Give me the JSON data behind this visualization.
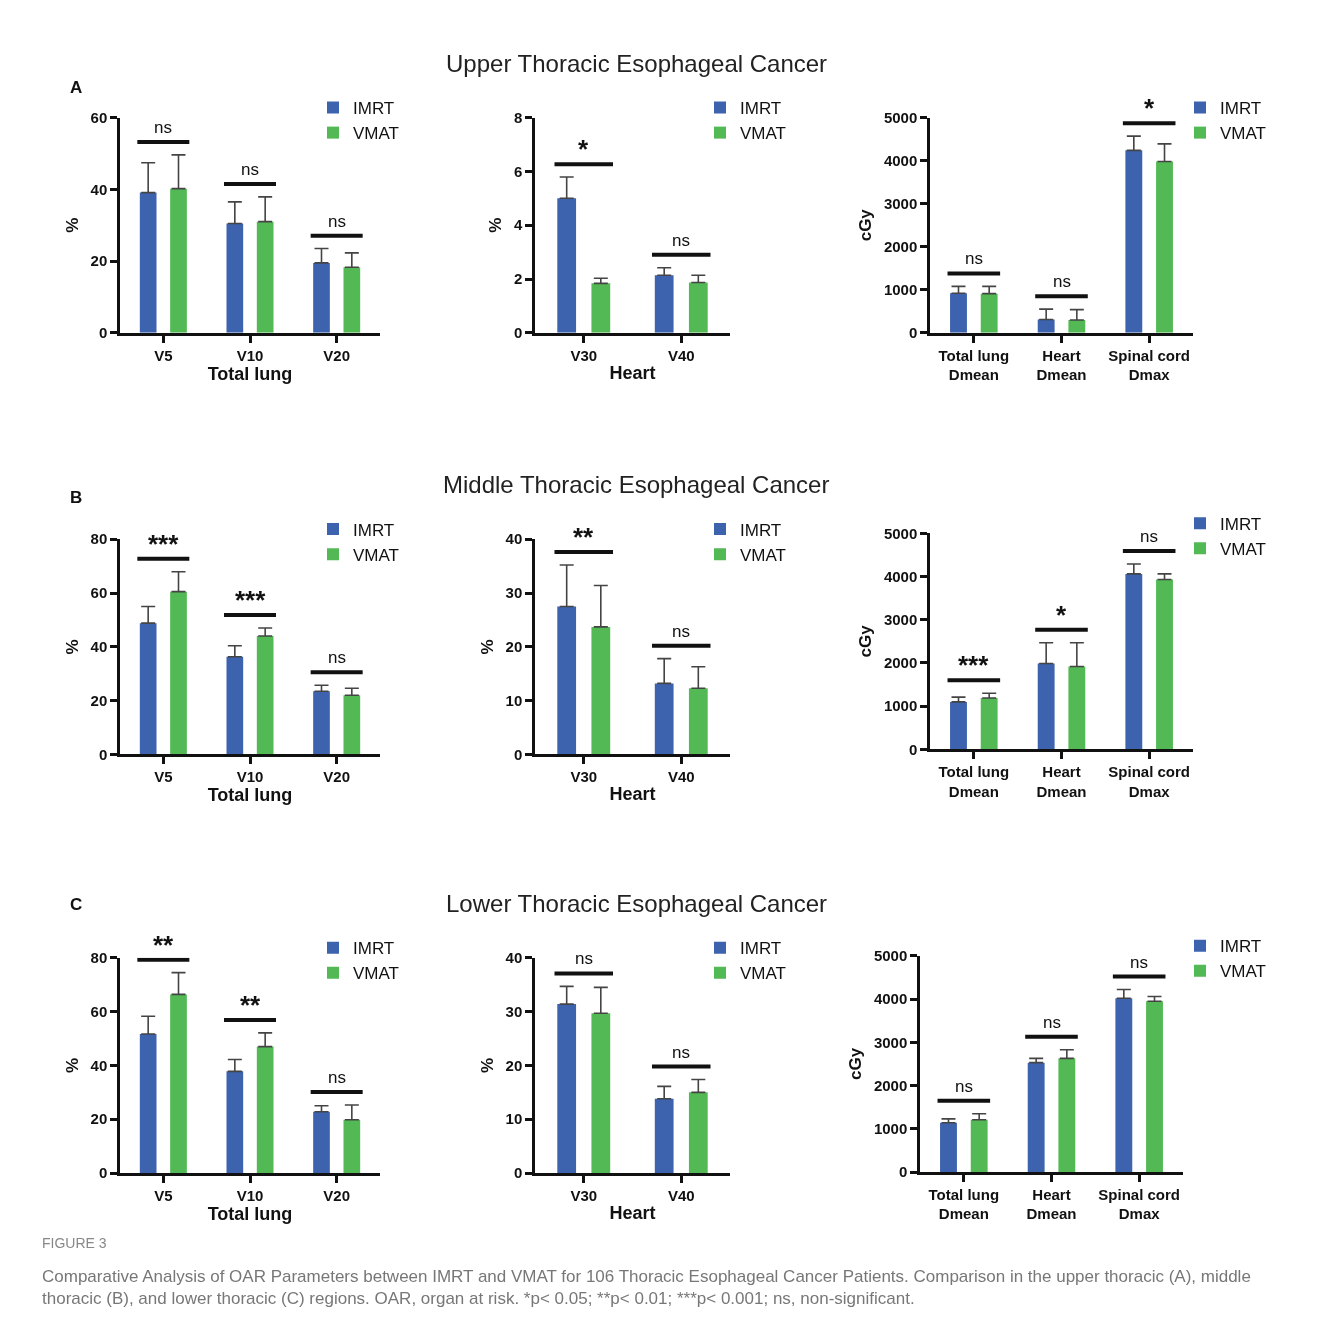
{
  "chart_data": [
    {
      "type": "bar",
      "xlabel": "Total lung",
      "ylabel": "%",
      "categories": [
        "V5",
        "V10",
        "V20"
      ],
      "legend": "top right",
      "ylim": [
        0,
        60
      ],
      "yticks": [
        0,
        20,
        40,
        60
      ],
      "series": [
        {
          "name": "IMRT",
          "color": "#3d62ae",
          "values": [
            39.1,
            30.5,
            19.5
          ],
          "errors": [
            [
              39.1,
              47.4
            ],
            [
              30.5,
              36.5
            ],
            [
              19.5,
              23.5
            ]
          ]
        },
        {
          "name": "VMAT",
          "color": "#52b955",
          "values": [
            40.2,
            31.0,
            18.3
          ],
          "errors": [
            [
              40.2,
              49.6
            ],
            [
              31.0,
              37.9
            ],
            [
              18.3,
              22.3
            ]
          ]
        }
      ],
      "annotations": [
        "A",
        "ns",
        "ns",
        "ns"
      ]
    },
    {
      "type": "bar",
      "title": "Upper Thoracic Esophageal Cancer",
      "xlabel": "Heart",
      "ylabel": "%",
      "categories": [
        "V30",
        "V40"
      ],
      "legend": "top right",
      "ylim": [
        0,
        8
      ],
      "yticks": [
        0,
        2,
        4,
        6,
        8
      ],
      "series": [
        {
          "name": "IMRT",
          "color": "#3d62ae",
          "values": [
            5.0,
            2.14
          ],
          "errors": [
            [
              5.0,
              5.79
            ],
            [
              2.14,
              2.42
            ]
          ]
        },
        {
          "name": "VMAT",
          "color": "#52b955",
          "values": [
            1.84,
            1.87
          ],
          "errors": [
            [
              1.84,
              2.03
            ],
            [
              1.87,
              2.14
            ]
          ]
        }
      ],
      "annotations": [
        "*",
        "ns"
      ]
    },
    {
      "type": "bar",
      "ylabel": "cGy",
      "categories": [
        "Total lung Dmean",
        "Heart Dmean",
        "Spinal cord Dmax"
      ],
      "legend": "top right",
      "ylim": [
        0,
        5000
      ],
      "yticks": [
        0,
        1000,
        2000,
        3000,
        4000,
        5000
      ],
      "series": [
        {
          "name": "IMRT",
          "color": "#3d62ae",
          "values": [
            920,
            310,
            4240
          ],
          "errors": [
            [
              920,
              1080
            ],
            [
              310,
              550
            ],
            [
              4240,
              4570
            ]
          ]
        },
        {
          "name": "VMAT",
          "color": "#52b955",
          "values": [
            910,
            300,
            3980
          ],
          "errors": [
            [
              910,
              1080
            ],
            [
              300,
              540
            ],
            [
              3980,
              4390
            ]
          ]
        }
      ],
      "annotations": [
        "ns",
        "ns",
        "*"
      ]
    },
    {
      "type": "bar",
      "xlabel": "Total lung",
      "ylabel": "%",
      "categories": [
        "V5",
        "V10",
        "V20"
      ],
      "legend": "top right",
      "ylim": [
        0,
        80
      ],
      "yticks": [
        0,
        20,
        40,
        60,
        80
      ],
      "series": [
        {
          "name": "IMRT",
          "color": "#3d62ae",
          "values": [
            48.8,
            36.3,
            23.5
          ],
          "errors": [
            [
              48.8,
              55.0
            ],
            [
              36.3,
              40.4
            ],
            [
              23.5,
              25.7
            ]
          ]
        },
        {
          "name": "VMAT",
          "color": "#52b955",
          "values": [
            60.5,
            44.0,
            22.0
          ],
          "errors": [
            [
              60.5,
              67.9
            ],
            [
              44.0,
              47.0
            ],
            [
              22.0,
              24.6
            ]
          ]
        }
      ],
      "annotations": [
        "B",
        "***",
        "***",
        "ns"
      ]
    },
    {
      "type": "bar",
      "title": "Middle Thoracic Esophageal Cancer",
      "xlabel": "Heart",
      "ylabel": "%",
      "categories": [
        "V30",
        "V40"
      ],
      "legend": "top right",
      "ylim": [
        0,
        40
      ],
      "yticks": [
        0,
        10,
        20,
        30,
        40
      ],
      "series": [
        {
          "name": "IMRT",
          "color": "#3d62ae",
          "values": [
            27.5,
            13.2
          ],
          "errors": [
            [
              27.5,
              35.2
            ],
            [
              13.2,
              17.8
            ]
          ]
        },
        {
          "name": "VMAT",
          "color": "#52b955",
          "values": [
            23.7,
            12.3
          ],
          "errors": [
            [
              23.7,
              31.4
            ],
            [
              12.3,
              16.3
            ]
          ]
        }
      ],
      "annotations": [
        "**",
        "ns"
      ]
    },
    {
      "type": "bar",
      "ylabel": "cGy",
      "categories": [
        "Total lung Dmean",
        "Heart Dmean",
        "Spinal cord Dmax"
      ],
      "legend": "top right",
      "ylim": [
        0,
        5000
      ],
      "yticks": [
        0,
        1000,
        2000,
        3000,
        4000,
        5000
      ],
      "series": [
        {
          "name": "IMRT",
          "color": "#3d62ae",
          "values": [
            1100,
            1990,
            4060
          ],
          "errors": [
            [
              1100,
              1210
            ],
            [
              1990,
              2470
            ],
            [
              4060,
              4290
            ]
          ]
        },
        {
          "name": "VMAT",
          "color": "#52b955",
          "values": [
            1190,
            1920,
            3930
          ],
          "errors": [
            [
              1190,
              1300
            ],
            [
              1920,
              2470
            ],
            [
              3930,
              4060
            ]
          ]
        }
      ],
      "annotations": [
        "***",
        "*",
        "ns"
      ]
    },
    {
      "type": "bar",
      "xlabel": "Total lung",
      "ylabel": "%",
      "categories": [
        "V5",
        "V10",
        "V20"
      ],
      "legend": "top right",
      "ylim": [
        0,
        80
      ],
      "yticks": [
        0,
        20,
        40,
        60,
        80
      ],
      "series": [
        {
          "name": "IMRT",
          "color": "#3d62ae",
          "values": [
            51.7,
            37.8,
            22.8
          ],
          "errors": [
            [
              51.7,
              58.3
            ],
            [
              37.8,
              42.2
            ],
            [
              22.8,
              25.0
            ]
          ]
        },
        {
          "name": "VMAT",
          "color": "#52b955",
          "values": [
            66.4,
            47.0,
            19.8
          ],
          "errors": [
            [
              66.4,
              74.5
            ],
            [
              47.0,
              52.1
            ],
            [
              19.8,
              25.3
            ]
          ]
        }
      ],
      "annotations": [
        "C",
        "**",
        "**",
        "ns",
        "FIGURE 3",
        "Comparative Analysis of OAR Parameters between IMRT and VMAT for 106 Thoracic Esophageal Cancer Patients. Comparison in the upper thoracic (A), middle thoracic (B), and lower thoracic (C) regions. OAR, organ at risk. *p< 0.05; **p< 0.01; ***p< 0.001; ns, non-significant."
      ]
    },
    {
      "type": "bar",
      "title": "Lower Thoracic Esophageal Cancer",
      "xlabel": "Heart",
      "ylabel": "%",
      "categories": [
        "V30",
        "V40"
      ],
      "legend": "top right",
      "ylim": [
        0,
        40
      ],
      "yticks": [
        0,
        10,
        20,
        30,
        40
      ],
      "series": [
        {
          "name": "IMRT",
          "color": "#3d62ae",
          "values": [
            31.4,
            13.8
          ],
          "errors": [
            [
              31.4,
              34.7
            ],
            [
              13.8,
              16.1
            ]
          ]
        },
        {
          "name": "VMAT",
          "color": "#52b955",
          "values": [
            29.7,
            15.0
          ],
          "errors": [
            [
              29.7,
              34.5
            ],
            [
              15.0,
              17.4
            ]
          ]
        }
      ],
      "annotations": [
        "ns",
        "ns"
      ]
    },
    {
      "type": "bar",
      "ylabel": "cGy",
      "categories": [
        "Total lung Dmean",
        "Heart Dmean",
        "Spinal cord Dmax"
      ],
      "legend": "top right",
      "ylim": [
        0,
        5000
      ],
      "yticks": [
        0,
        1000,
        2000,
        3000,
        4000,
        5000
      ],
      "series": [
        {
          "name": "IMRT",
          "color": "#3d62ae",
          "values": [
            1140,
            2530,
            4020
          ],
          "errors": [
            [
              1140,
              1230
            ],
            [
              2530,
              2630
            ],
            [
              4020,
              4220
            ]
          ]
        },
        {
          "name": "VMAT",
          "color": "#52b955",
          "values": [
            1210,
            2630,
            3950
          ],
          "errors": [
            [
              1210,
              1350
            ],
            [
              2630,
              2830
            ],
            [
              3950,
              4060
            ]
          ]
        }
      ],
      "annotations": [
        "ns",
        "ns",
        "ns"
      ]
    }
  ]
}
